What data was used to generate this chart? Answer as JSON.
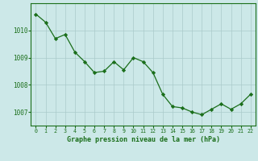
{
  "x": [
    0,
    1,
    2,
    3,
    4,
    5,
    6,
    7,
    8,
    9,
    10,
    11,
    12,
    13,
    14,
    15,
    16,
    17,
    18,
    19,
    20,
    21,
    22
  ],
  "y": [
    1010.6,
    1010.3,
    1009.7,
    1009.85,
    1009.2,
    1008.85,
    1008.45,
    1008.5,
    1008.85,
    1008.55,
    1009.0,
    1008.85,
    1008.45,
    1007.65,
    1007.2,
    1007.15,
    1007.0,
    1006.9,
    1007.1,
    1007.3,
    1007.1,
    1007.3,
    1007.65
  ],
  "line_color": "#1a6e1a",
  "marker_color": "#1a6e1a",
  "bg_color": "#cce8e8",
  "grid_color": "#aacaca",
  "title": "Graphe pression niveau de la mer (hPa)",
  "ylabel_ticks": [
    1007,
    1008,
    1009,
    1010
  ],
  "xlim": [
    -0.5,
    22.5
  ],
  "ylim": [
    1006.5,
    1011.0
  ]
}
